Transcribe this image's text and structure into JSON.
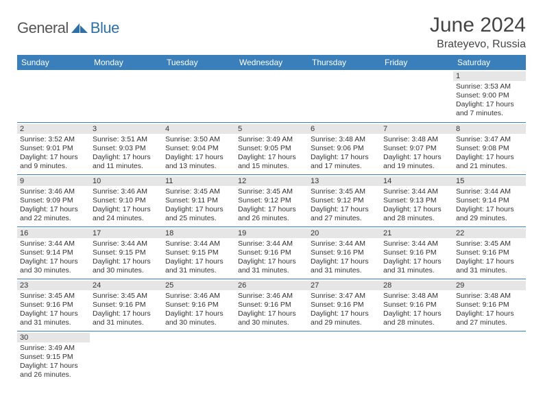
{
  "logo": {
    "text1": "General",
    "text2": "Blue"
  },
  "title": "June 2024",
  "location": "Brateyevo, Russia",
  "colors": {
    "header_bg": "#3b7fba",
    "header_fg": "#ffffff",
    "daynum_bg": "#e6e6e6",
    "border": "#3b7fba",
    "logo_blue": "#2f6fa8"
  },
  "day_names": [
    "Sunday",
    "Monday",
    "Tuesday",
    "Wednesday",
    "Thursday",
    "Friday",
    "Saturday"
  ],
  "weeks": [
    [
      null,
      null,
      null,
      null,
      null,
      null,
      {
        "n": "1",
        "sr": "Sunrise: 3:53 AM",
        "ss": "Sunset: 9:00 PM",
        "dl": "Daylight: 17 hours and 7 minutes."
      }
    ],
    [
      {
        "n": "2",
        "sr": "Sunrise: 3:52 AM",
        "ss": "Sunset: 9:01 PM",
        "dl": "Daylight: 17 hours and 9 minutes."
      },
      {
        "n": "3",
        "sr": "Sunrise: 3:51 AM",
        "ss": "Sunset: 9:03 PM",
        "dl": "Daylight: 17 hours and 11 minutes."
      },
      {
        "n": "4",
        "sr": "Sunrise: 3:50 AM",
        "ss": "Sunset: 9:04 PM",
        "dl": "Daylight: 17 hours and 13 minutes."
      },
      {
        "n": "5",
        "sr": "Sunrise: 3:49 AM",
        "ss": "Sunset: 9:05 PM",
        "dl": "Daylight: 17 hours and 15 minutes."
      },
      {
        "n": "6",
        "sr": "Sunrise: 3:48 AM",
        "ss": "Sunset: 9:06 PM",
        "dl": "Daylight: 17 hours and 17 minutes."
      },
      {
        "n": "7",
        "sr": "Sunrise: 3:48 AM",
        "ss": "Sunset: 9:07 PM",
        "dl": "Daylight: 17 hours and 19 minutes."
      },
      {
        "n": "8",
        "sr": "Sunrise: 3:47 AM",
        "ss": "Sunset: 9:08 PM",
        "dl": "Daylight: 17 hours and 21 minutes."
      }
    ],
    [
      {
        "n": "9",
        "sr": "Sunrise: 3:46 AM",
        "ss": "Sunset: 9:09 PM",
        "dl": "Daylight: 17 hours and 22 minutes."
      },
      {
        "n": "10",
        "sr": "Sunrise: 3:46 AM",
        "ss": "Sunset: 9:10 PM",
        "dl": "Daylight: 17 hours and 24 minutes."
      },
      {
        "n": "11",
        "sr": "Sunrise: 3:45 AM",
        "ss": "Sunset: 9:11 PM",
        "dl": "Daylight: 17 hours and 25 minutes."
      },
      {
        "n": "12",
        "sr": "Sunrise: 3:45 AM",
        "ss": "Sunset: 9:12 PM",
        "dl": "Daylight: 17 hours and 26 minutes."
      },
      {
        "n": "13",
        "sr": "Sunrise: 3:45 AM",
        "ss": "Sunset: 9:12 PM",
        "dl": "Daylight: 17 hours and 27 minutes."
      },
      {
        "n": "14",
        "sr": "Sunrise: 3:44 AM",
        "ss": "Sunset: 9:13 PM",
        "dl": "Daylight: 17 hours and 28 minutes."
      },
      {
        "n": "15",
        "sr": "Sunrise: 3:44 AM",
        "ss": "Sunset: 9:14 PM",
        "dl": "Daylight: 17 hours and 29 minutes."
      }
    ],
    [
      {
        "n": "16",
        "sr": "Sunrise: 3:44 AM",
        "ss": "Sunset: 9:14 PM",
        "dl": "Daylight: 17 hours and 30 minutes."
      },
      {
        "n": "17",
        "sr": "Sunrise: 3:44 AM",
        "ss": "Sunset: 9:15 PM",
        "dl": "Daylight: 17 hours and 30 minutes."
      },
      {
        "n": "18",
        "sr": "Sunrise: 3:44 AM",
        "ss": "Sunset: 9:15 PM",
        "dl": "Daylight: 17 hours and 31 minutes."
      },
      {
        "n": "19",
        "sr": "Sunrise: 3:44 AM",
        "ss": "Sunset: 9:16 PM",
        "dl": "Daylight: 17 hours and 31 minutes."
      },
      {
        "n": "20",
        "sr": "Sunrise: 3:44 AM",
        "ss": "Sunset: 9:16 PM",
        "dl": "Daylight: 17 hours and 31 minutes."
      },
      {
        "n": "21",
        "sr": "Sunrise: 3:44 AM",
        "ss": "Sunset: 9:16 PM",
        "dl": "Daylight: 17 hours and 31 minutes."
      },
      {
        "n": "22",
        "sr": "Sunrise: 3:45 AM",
        "ss": "Sunset: 9:16 PM",
        "dl": "Daylight: 17 hours and 31 minutes."
      }
    ],
    [
      {
        "n": "23",
        "sr": "Sunrise: 3:45 AM",
        "ss": "Sunset: 9:16 PM",
        "dl": "Daylight: 17 hours and 31 minutes."
      },
      {
        "n": "24",
        "sr": "Sunrise: 3:45 AM",
        "ss": "Sunset: 9:16 PM",
        "dl": "Daylight: 17 hours and 31 minutes."
      },
      {
        "n": "25",
        "sr": "Sunrise: 3:46 AM",
        "ss": "Sunset: 9:16 PM",
        "dl": "Daylight: 17 hours and 30 minutes."
      },
      {
        "n": "26",
        "sr": "Sunrise: 3:46 AM",
        "ss": "Sunset: 9:16 PM",
        "dl": "Daylight: 17 hours and 30 minutes."
      },
      {
        "n": "27",
        "sr": "Sunrise: 3:47 AM",
        "ss": "Sunset: 9:16 PM",
        "dl": "Daylight: 17 hours and 29 minutes."
      },
      {
        "n": "28",
        "sr": "Sunrise: 3:48 AM",
        "ss": "Sunset: 9:16 PM",
        "dl": "Daylight: 17 hours and 28 minutes."
      },
      {
        "n": "29",
        "sr": "Sunrise: 3:48 AM",
        "ss": "Sunset: 9:16 PM",
        "dl": "Daylight: 17 hours and 27 minutes."
      }
    ],
    [
      {
        "n": "30",
        "sr": "Sunrise: 3:49 AM",
        "ss": "Sunset: 9:15 PM",
        "dl": "Daylight: 17 hours and 26 minutes."
      },
      null,
      null,
      null,
      null,
      null,
      null
    ]
  ]
}
